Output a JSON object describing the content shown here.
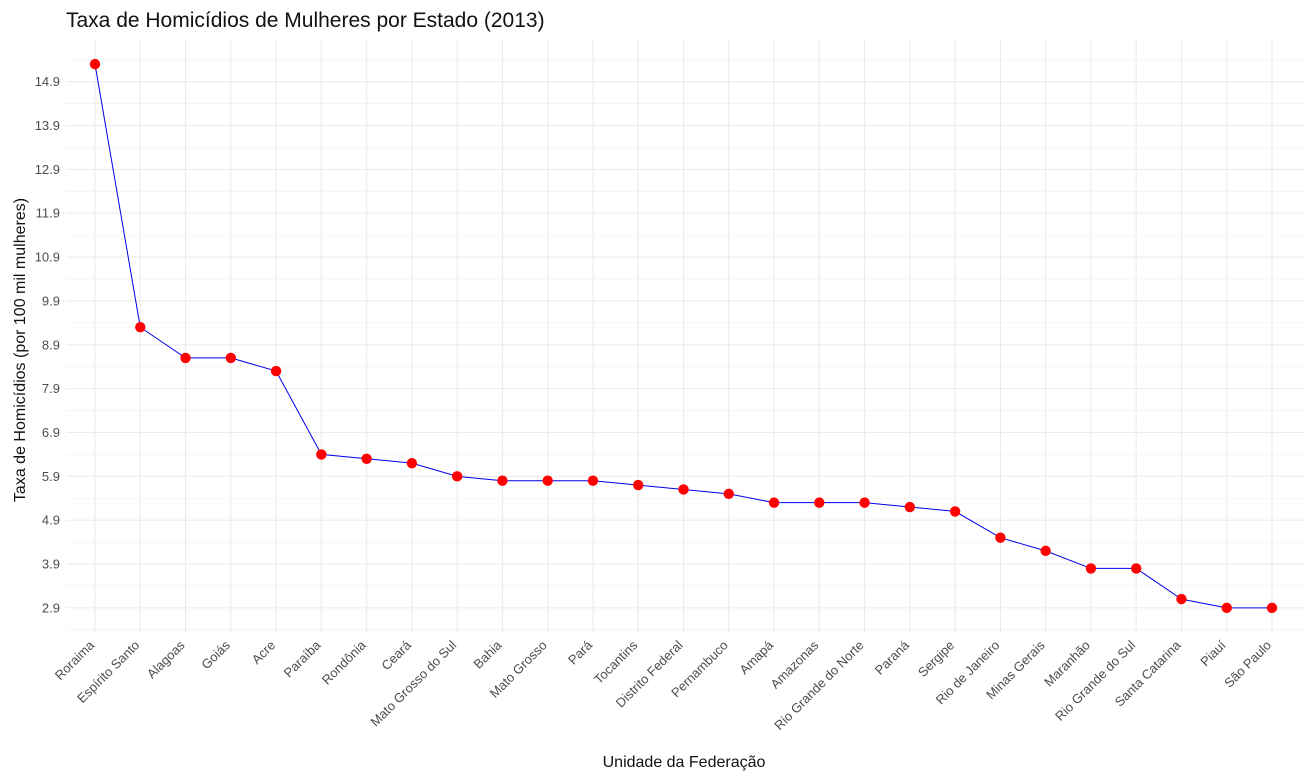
{
  "chart_data": {
    "type": "line",
    "title": "Taxa de Homicídios de Mulheres por Estado (2013)",
    "xlabel": "Unidade da Federação",
    "ylabel": "Taxa de Homicídios (por 100 mil mulheres)",
    "categories": [
      "Roraima",
      "Espírito Santo",
      "Alagoas",
      "Goiás",
      "Acre",
      "Paraíba",
      "Rondônia",
      "Ceará",
      "Mato Grosso do Sul",
      "Bahia",
      "Mato Grosso",
      "Pará",
      "Tocantins",
      "Distrito Federal",
      "Pernambuco",
      "Amapá",
      "Amazonas",
      "Rio Grande do Norte",
      "Paraná",
      "Sergipe",
      "Rio de Janeiro",
      "Minas Gerais",
      "Maranhão",
      "Rio Grande do Sul",
      "Santa Catarina",
      "Piauí",
      "São Paulo"
    ],
    "values": [
      15.3,
      9.3,
      8.6,
      8.6,
      8.3,
      6.4,
      6.3,
      6.2,
      5.9,
      5.8,
      5.8,
      5.8,
      5.7,
      5.6,
      5.5,
      5.3,
      5.3,
      5.3,
      5.2,
      5.1,
      4.5,
      4.2,
      3.8,
      3.8,
      3.1,
      2.9,
      2.9
    ],
    "y_ticks": [
      "2.9",
      "3.9",
      "4.9",
      "5.9",
      "6.9",
      "7.9",
      "8.9",
      "9.9",
      "10.9",
      "11.9",
      "12.9",
      "13.9",
      "14.9"
    ],
    "ylim": [
      2.35,
      15.85
    ],
    "grid": true,
    "line_color": "#0000ee",
    "point_color": "#ff0000",
    "grid_color": "#ebebeb"
  }
}
